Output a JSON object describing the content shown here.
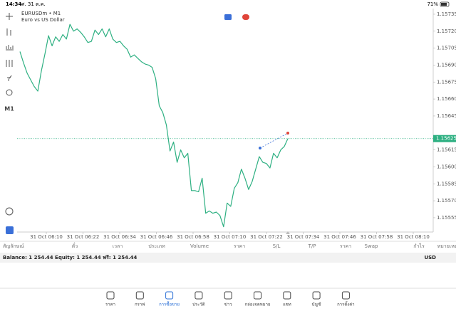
{
  "status_bar": {
    "time": "14:34",
    "date": "ศ. 31 ต.ค.",
    "battery": "71%"
  },
  "toolbar": {
    "timeframe": "M1"
  },
  "chart_data": {
    "type": "line",
    "title": "EURUSDm • M1",
    "subtitle": "Euro vs US Dollar",
    "color": "#2eb082",
    "values": [
      1.15702,
      1.15692,
      1.15683,
      1.15677,
      1.15671,
      1.15667,
      1.15685,
      1.157,
      1.15716,
      1.15707,
      1.15715,
      1.15711,
      1.15717,
      1.15713,
      1.15726,
      1.1572,
      1.15722,
      1.15719,
      1.15715,
      1.1571,
      1.15711,
      1.15721,
      1.15717,
      1.15722,
      1.15715,
      1.15722,
      1.15713,
      1.1571,
      1.15711,
      1.15707,
      1.15704,
      1.15697,
      1.15699,
      1.15696,
      1.15693,
      1.15691,
      1.1569,
      1.15688,
      1.15678,
      1.15654,
      1.15648,
      1.15637,
      1.15614,
      1.15622,
      1.15604,
      1.15615,
      1.15608,
      1.15612,
      1.15579,
      1.15579,
      1.15578,
      1.1559,
      1.15559,
      1.15561,
      1.15559,
      1.1556,
      1.15557,
      1.15547,
      1.15568,
      1.15565,
      1.15581,
      1.15586,
      1.15598,
      1.1559,
      1.1558,
      1.15587,
      1.15598,
      1.15609,
      1.15604,
      1.15603,
      1.15599,
      1.15612,
      1.15608,
      1.15615,
      1.15618,
      1.15625
    ],
    "ylim": [
      1.15543,
      1.1574
    ],
    "yticks": [
      1.15735,
      {
        "value": 1.1572,
        "label": "1.15720"
      },
      1.15705,
      {
        "value": 1.1569,
        "label": "1.15690"
      },
      1.15675,
      {
        "value": 1.1566,
        "label": "1.15660"
      },
      1.15645,
      1.15615,
      {
        "value": 1.156,
        "label": "1.15600"
      },
      1.15585,
      {
        "value": 1.1557,
        "label": "1.15570"
      },
      1.15555
    ],
    "current_price": 1.15625,
    "time_labels": [
      "31 Oct 06:10",
      "31 Oct 06:22",
      "31 Oct 06:34",
      "31 Oct 06:46",
      "31 Oct 06:58",
      "31 Oct 07:10",
      "31 Oct 07:22",
      "31 Oct 07:34",
      "31 Oct 07:46",
      "31 Oct 07:58",
      "31 Oct 08:10"
    ]
  },
  "positions_table": {
    "columns": [
      "สัญลักษณ์",
      "ตั๋ว",
      "เวลา",
      "ประเภท",
      "Volume",
      "ราคา",
      "S/L",
      "T/P",
      "ราคา",
      "Swap",
      "กำไร",
      "หมายเหตุ"
    ]
  },
  "account": {
    "summary": "Balance: 1 254.44 Equity: 1 254.44 ฟรี: 1 254.44",
    "currency": "USD"
  },
  "nav": {
    "items": [
      "ราคา",
      "กราฟ",
      "การซื้อขาย",
      "ประวัติ",
      "ข่าว",
      "กล่องจดหมาย",
      "แชท",
      "บัญชี",
      "การตั้งค่า"
    ]
  }
}
